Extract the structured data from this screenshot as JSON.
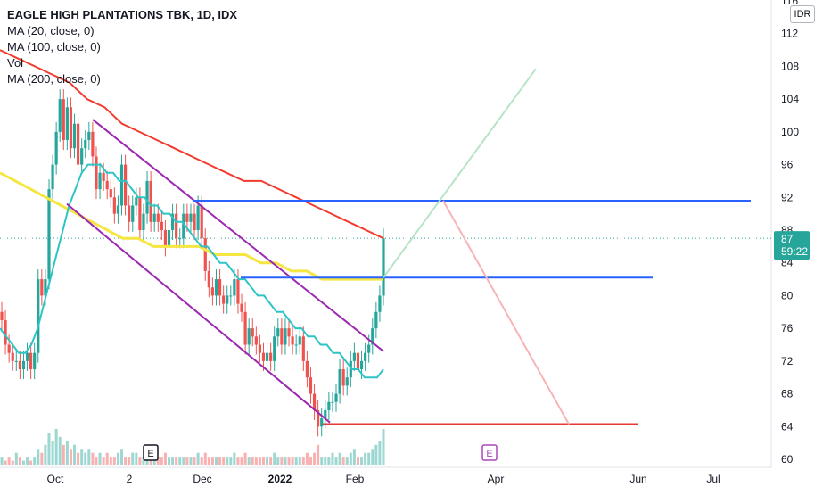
{
  "header": {
    "title": "EAGLE HIGH PLANTATIONS TBK, 1D, IDX",
    "indicators": [
      "MA (20, close, 0)",
      "MA (100, close, 0)",
      "Vol",
      "MA (200, close, 0)"
    ],
    "currency": "IDR"
  },
  "price_badge": {
    "price": "87",
    "countdown": "59:22"
  },
  "markers": [
    "E",
    "E"
  ],
  "colors": {
    "up": "#26a69a",
    "down": "#ef5350",
    "ma20": "#2ec4c6",
    "ma100": "#f5e642",
    "ma200": "#f23b2e",
    "channel": "#9c27b0",
    "hline": "#2962ff",
    "support": "#e53935",
    "proj_up": "#b7e4c7",
    "proj_down": "#f8b4b4"
  },
  "chart_data": {
    "type": "candlestick",
    "title": "EAGLE HIGH PLANTATIONS TBK, 1D, IDX",
    "x_tick_labels": [
      "Oct",
      "2",
      "Dec",
      "2022",
      "Feb",
      "Apr",
      "Jun",
      "Jul"
    ],
    "y_tick_labels": [
      "116",
      "112",
      "108",
      "104",
      "100",
      "96",
      "92",
      "88",
      "84",
      "80",
      "76",
      "72",
      "68",
      "64",
      "60"
    ],
    "ylim": [
      60,
      116
    ],
    "last_price": 87,
    "close_series": [
      77,
      74,
      73,
      72,
      72,
      71,
      72,
      73,
      71,
      73,
      82,
      80,
      82,
      93,
      96,
      100,
      104,
      99,
      103,
      98,
      101,
      96,
      98,
      99,
      100,
      97,
      93,
      95,
      94,
      93,
      92,
      90,
      91,
      96,
      91,
      89,
      91,
      92,
      88,
      90,
      94,
      89,
      90,
      89,
      88,
      86,
      88,
      90,
      87,
      87,
      90,
      89,
      90,
      88,
      91,
      87,
      83,
      81,
      80,
      82,
      80,
      79,
      80,
      80,
      82,
      79,
      78,
      74,
      76,
      75,
      74,
      73,
      72,
      73,
      72,
      75,
      76,
      74,
      76,
      75,
      74,
      74,
      75,
      72,
      70,
      68,
      66,
      64,
      65,
      66,
      67,
      67,
      68,
      71,
      69,
      70,
      72,
      73,
      71,
      72,
      73,
      74,
      76,
      78,
      80,
      87
    ],
    "volume_series": [
      2,
      1,
      2,
      1,
      3,
      2,
      1,
      2,
      1,
      2,
      4,
      3,
      5,
      8,
      6,
      9,
      7,
      5,
      6,
      4,
      5,
      3,
      4,
      3,
      4,
      3,
      2,
      3,
      2,
      3,
      2,
      2,
      3,
      4,
      2,
      2,
      3,
      3,
      2,
      2,
      3,
      2,
      2,
      2,
      2,
      3,
      2,
      2,
      2,
      2,
      2,
      2,
      2,
      2,
      3,
      2,
      3,
      2,
      2,
      2,
      2,
      2,
      2,
      2,
      3,
      2,
      2,
      3,
      2,
      2,
      2,
      2,
      2,
      2,
      2,
      3,
      2,
      2,
      2,
      2,
      2,
      2,
      2,
      2,
      3,
      2,
      3,
      5,
      2,
      2,
      2,
      3,
      2,
      3,
      2,
      2,
      3,
      4,
      2,
      2,
      3,
      3,
      4,
      5,
      6,
      9
    ],
    "ma20_series": [
      76,
      75,
      74,
      73,
      73,
      74,
      76,
      79,
      82,
      85,
      88,
      91,
      93,
      95,
      96,
      96,
      96,
      95,
      95,
      94,
      94,
      93,
      92,
      92,
      91,
      91,
      90,
      90,
      89,
      89,
      88,
      87,
      86,
      86,
      85,
      84,
      84,
      83,
      82,
      82,
      81,
      80,
      80,
      79,
      78,
      78,
      77,
      76,
      76,
      75,
      75,
      74,
      74,
      73,
      73,
      72,
      71,
      71,
      70,
      70,
      70,
      71
    ],
    "ma100_series": [
      95,
      94,
      93,
      92,
      91,
      90,
      89,
      88,
      87,
      87,
      86,
      86,
      86,
      86,
      85,
      85,
      85,
      84,
      84,
      83,
      83,
      82,
      82,
      82,
      82,
      82
    ],
    "ma200_series": [
      110,
      109,
      108,
      107,
      106,
      104,
      103,
      101,
      100,
      99,
      98,
      97,
      96,
      95,
      94,
      94,
      93,
      92,
      91,
      90,
      89,
      88,
      87
    ],
    "drawings": {
      "resistance_level": 91.6,
      "breakout_level": 82.2,
      "support_level": 64.3,
      "projection_target": 107.7
    }
  }
}
